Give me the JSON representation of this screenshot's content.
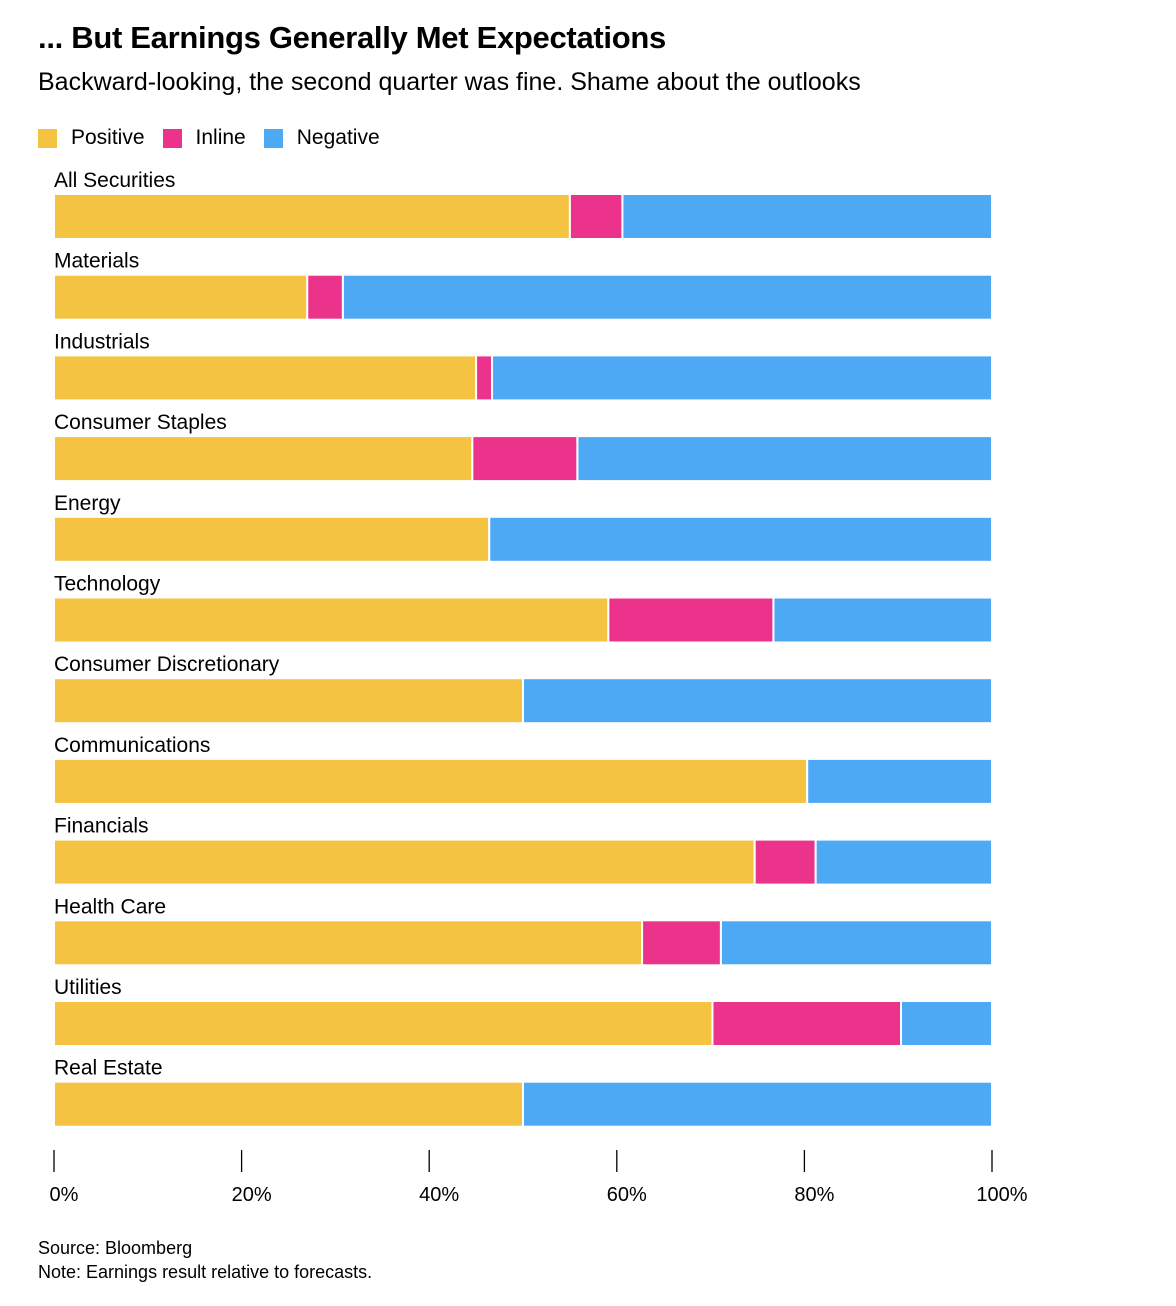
{
  "header": {
    "title": "... But Earnings Generally Met Expectations",
    "subtitle": "Backward-looking, the second quarter was fine. Shame about the outlooks"
  },
  "footer": {
    "source": "Source: Bloomberg",
    "note": "Note: Earnings result relative to forecasts."
  },
  "chart_data": {
    "type": "bar",
    "orientation": "horizontal",
    "stacked": true,
    "title": "... But Earnings Generally Met Expectations",
    "subtitle": "Backward-looking, the second quarter was fine. Shame about the outlooks",
    "categories": [
      "All Securities",
      "Materials",
      "Industrials",
      "Consumer Staples",
      "Energy",
      "Technology",
      "Consumer Discretionary",
      "Communications",
      "Financials",
      "Health Care",
      "Utilities",
      "Real Estate"
    ],
    "series": [
      {
        "name": "Positive",
        "color": "#F5C342",
        "values": [
          55,
          27,
          45,
          44.6,
          46.4,
          59.1,
          50,
          80.3,
          74.7,
          62.7,
          70.2,
          50
        ]
      },
      {
        "name": "Inline",
        "color": "#EB338C",
        "values": [
          5.6,
          3.8,
          1.7,
          11.2,
          0,
          17.6,
          0,
          0,
          6.5,
          8.4,
          20.1,
          0
        ]
      },
      {
        "name": "Negative",
        "color": "#4EA9F5",
        "values": [
          39.4,
          69.2,
          53.3,
          44.2,
          53.6,
          23.3,
          50,
          19.7,
          18.8,
          28.9,
          9.7,
          50
        ]
      }
    ],
    "x_ticks": [
      "0%",
      "20%",
      "40%",
      "60%",
      "80%",
      "100%"
    ],
    "xlim": [
      0,
      100
    ],
    "xlabel": "",
    "ylabel": "",
    "legend_position": "top-left",
    "grid": false
  }
}
